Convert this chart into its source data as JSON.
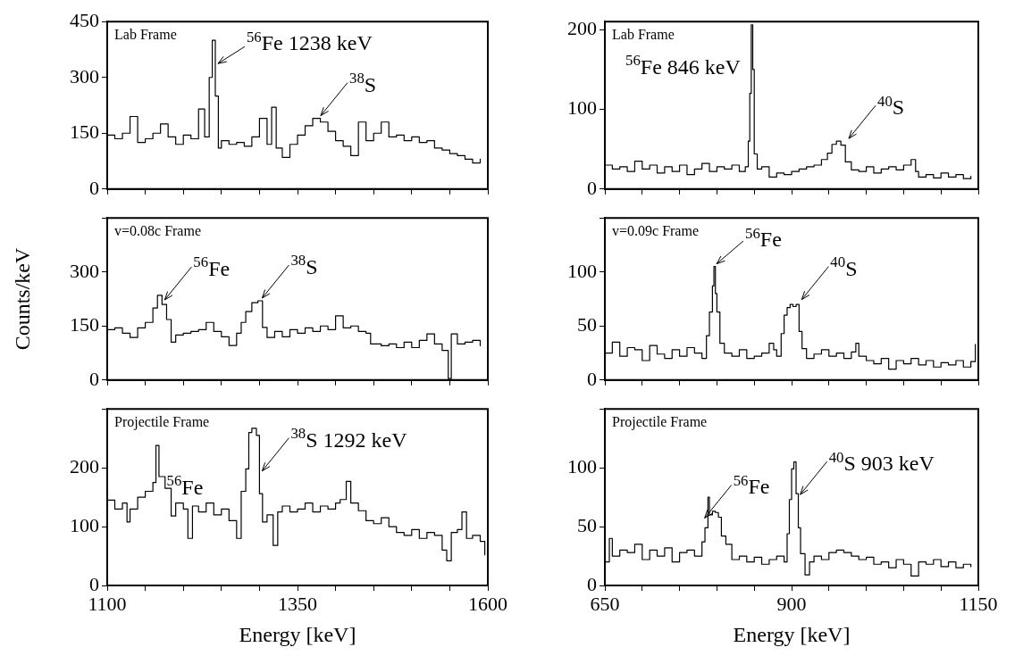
{
  "chart_data": [
    {
      "type": "step",
      "color": "#000000",
      "xlim": [
        1100,
        1600
      ],
      "xticks": [
        1100,
        {
          "value": 1150,
          "label": null
        },
        {
          "value": 1200,
          "label": null
        },
        {
          "value": 1250,
          "label": null
        },
        {
          "value": 1300,
          "label": null
        },
        1350,
        {
          "value": 1400,
          "label": null
        },
        {
          "value": 1450,
          "label": null
        },
        {
          "value": 1500,
          "label": null
        },
        {
          "value": 1550,
          "label": null
        },
        1600
      ],
      "ylim": [
        0,
        450
      ],
      "yticks": [
        0,
        150,
        300,
        450
      ],
      "tick_labels": "y",
      "x": [
        1100,
        1110,
        1120,
        1130,
        1140,
        1150,
        1160,
        1170,
        1180,
        1190,
        1200,
        1210,
        1220,
        1228,
        1234,
        1238,
        1242,
        1246,
        1250,
        1260,
        1270,
        1280,
        1290,
        1300,
        1310,
        1316,
        1322,
        1330,
        1340,
        1350,
        1360,
        1370,
        1380,
        1390,
        1400,
        1410,
        1420,
        1430,
        1440,
        1450,
        1460,
        1470,
        1480,
        1490,
        1500,
        1510,
        1520,
        1530,
        1540,
        1550,
        1560,
        1570,
        1580,
        1590
      ],
      "values": [
        145,
        135,
        150,
        195,
        125,
        135,
        150,
        175,
        140,
        120,
        145,
        135,
        215,
        140,
        300,
        400,
        250,
        110,
        130,
        120,
        125,
        115,
        140,
        190,
        120,
        220,
        110,
        85,
        120,
        145,
        170,
        190,
        180,
        155,
        130,
        115,
        90,
        180,
        130,
        150,
        180,
        140,
        145,
        130,
        140,
        125,
        130,
        110,
        105,
        95,
        90,
        80,
        70,
        80
      ],
      "annotations": [
        "Lab Frame",
        {
          "text": "$^{56}$Fe 1238 keV",
          "x": 1242,
          "y": 330
        },
        {
          "text": "$^{38}$S",
          "x": 1377,
          "y": 190
        }
      ]
    },
    {
      "type": "step",
      "color": "#000000",
      "xlim": [
        1100,
        1600
      ],
      "xticks": [
        1100,
        {
          "value": 1150,
          "label": null
        },
        {
          "value": 1200,
          "label": null
        },
        {
          "value": 1250,
          "label": null
        },
        {
          "value": 1300,
          "label": null
        },
        1350,
        {
          "value": 1400,
          "label": null
        },
        {
          "value": 1450,
          "label": null
        },
        {
          "value": 1500,
          "label": null
        },
        {
          "value": 1550,
          "label": null
        },
        1600
      ],
      "ylim": [
        0,
        450
      ],
      "yticks": [
        0,
        150,
        300,
        {
          "value": 450,
          "label": null
        }
      ],
      "tick_labels": "y",
      "ylabel": "Counts/keV",
      "x": [
        1100,
        1110,
        1120,
        1130,
        1140,
        1150,
        1160,
        1166,
        1172,
        1178,
        1184,
        1190,
        1200,
        1210,
        1220,
        1230,
        1240,
        1250,
        1260,
        1270,
        1276,
        1282,
        1290,
        1298,
        1304,
        1310,
        1320,
        1330,
        1340,
        1350,
        1360,
        1370,
        1380,
        1390,
        1400,
        1410,
        1420,
        1430,
        1440,
        1446,
        1450,
        1460,
        1470,
        1480,
        1490,
        1500,
        1510,
        1520,
        1530,
        1540,
        1548,
        1552,
        1560,
        1570,
        1580,
        1590
      ],
      "values": [
        140,
        145,
        130,
        118,
        145,
        160,
        200,
        235,
        210,
        168,
        105,
        125,
        130,
        135,
        140,
        160,
        135,
        120,
        96,
        130,
        160,
        190,
        215,
        220,
        146,
        118,
        135,
        120,
        140,
        130,
        145,
        135,
        150,
        140,
        178,
        145,
        150,
        135,
        130,
        100,
        100,
        95,
        100,
        90,
        105,
        90,
        110,
        128,
        100,
        82,
        4,
        128,
        100,
        105,
        110,
        95
      ],
      "annotations": [
        "v=0.08c Frame",
        {
          "text": "$^{56}$Fe",
          "x": 1172,
          "y": 215
        },
        {
          "text": "$^{38}$S",
          "x": 1300,
          "y": 220
        }
      ]
    },
    {
      "type": "step",
      "color": "#000000",
      "xlim": [
        1100,
        1600
      ],
      "xticks": [
        1100,
        {
          "value": 1150,
          "label": null
        },
        {
          "value": 1200,
          "label": null
        },
        {
          "value": 1250,
          "label": null
        },
        {
          "value": 1300,
          "label": null
        },
        1350,
        {
          "value": 1400,
          "label": null
        },
        {
          "value": 1450,
          "label": null
        },
        {
          "value": 1500,
          "label": null
        },
        {
          "value": 1550,
          "label": null
        },
        1600
      ],
      "ylim": [
        0,
        300
      ],
      "yticks": [
        0,
        100,
        200,
        {
          "value": 300,
          "label": null
        }
      ],
      "xlabel": "Energy [keV]",
      "x": [
        1100,
        1110,
        1120,
        1126,
        1130,
        1140,
        1150,
        1160,
        1164,
        1168,
        1176,
        1184,
        1190,
        1200,
        1206,
        1212,
        1220,
        1230,
        1240,
        1250,
        1260,
        1270,
        1276,
        1282,
        1286,
        1290,
        1296,
        1300,
        1304,
        1310,
        1318,
        1324,
        1330,
        1340,
        1350,
        1360,
        1370,
        1380,
        1390,
        1400,
        1406,
        1414,
        1420,
        1430,
        1440,
        1450,
        1460,
        1470,
        1480,
        1490,
        1500,
        1510,
        1520,
        1530,
        1540,
        1546,
        1552,
        1560,
        1566,
        1572,
        1580,
        1590,
        1596
      ],
      "values": [
        145,
        130,
        140,
        108,
        130,
        150,
        160,
        175,
        238,
        185,
        165,
        118,
        140,
        130,
        80,
        135,
        125,
        140,
        120,
        130,
        110,
        80,
        160,
        198,
        260,
        267,
        255,
        156,
        108,
        120,
        68,
        125,
        135,
        125,
        130,
        140,
        125,
        135,
        130,
        140,
        146,
        177,
        140,
        127,
        110,
        105,
        115,
        100,
        90,
        85,
        95,
        80,
        90,
        85,
        60,
        42,
        90,
        95,
        125,
        80,
        85,
        75,
        52
      ],
      "annotations": [
        "Projectile Frame",
        {
          "text": "$^{56}$Fe",
          "x": 1164,
          "y": 238
        },
        {
          "text": "$^{38}$S 1292 keV",
          "x": 1300,
          "y": 190
        }
      ]
    },
    {
      "type": "step",
      "color": "#000000",
      "xlim": [
        650,
        1150
      ],
      "xticks": [
        650,
        {
          "value": 700,
          "label": null
        },
        {
          "value": 750,
          "label": null
        },
        {
          "value": 800,
          "label": null
        },
        {
          "value": 850,
          "label": null
        },
        900,
        {
          "value": 950,
          "label": null
        },
        {
          "value": 1000,
          "label": null
        },
        {
          "value": 1050,
          "label": null
        },
        {
          "value": 1100,
          "label": null
        },
        1150
      ],
      "ylim": [
        0,
        210
      ],
      "yticks": [
        0,
        100,
        200
      ],
      "tick_labels": "y",
      "x": [
        650,
        660,
        670,
        680,
        690,
        700,
        710,
        720,
        730,
        740,
        750,
        760,
        770,
        780,
        790,
        800,
        810,
        820,
        830,
        838,
        842,
        844,
        846,
        848,
        850,
        854,
        860,
        870,
        880,
        890,
        900,
        910,
        920,
        930,
        940,
        948,
        954,
        960,
        966,
        972,
        980,
        990,
        1000,
        1010,
        1020,
        1030,
        1040,
        1050,
        1060,
        1066,
        1070,
        1080,
        1090,
        1100,
        1110,
        1120,
        1130,
        1140
      ],
      "values": [
        30,
        25,
        28,
        22,
        35,
        25,
        30,
        20,
        28,
        22,
        30,
        18,
        25,
        32,
        22,
        28,
        25,
        30,
        22,
        28,
        60,
        120,
        206,
        150,
        44,
        25,
        28,
        15,
        20,
        18,
        22,
        25,
        28,
        30,
        37,
        45,
        56,
        60,
        55,
        34,
        24,
        22,
        28,
        20,
        25,
        28,
        24,
        30,
        37,
        22,
        15,
        18,
        14,
        20,
        15,
        18,
        13,
        16
      ],
      "annotations": [
        "Lab Frame",
        {
          "text": "$^{56}$Fe 846 keV",
          "x": 846,
          "y": 206
        },
        {
          "text": "$^{40}$S",
          "x": 973,
          "y": 60
        }
      ]
    },
    {
      "type": "step",
      "color": "#000000",
      "xlim": [
        650,
        1150
      ],
      "xticks": [
        650,
        {
          "value": 700,
          "label": null
        },
        {
          "value": 750,
          "label": null
        },
        {
          "value": 800,
          "label": null
        },
        {
          "value": 850,
          "label": null
        },
        900,
        {
          "value": 950,
          "label": null
        },
        {
          "value": 1000,
          "label": null
        },
        {
          "value": 1050,
          "label": null
        },
        {
          "value": 1100,
          "label": null
        },
        1150
      ],
      "ylim": [
        0,
        150
      ],
      "yticks": [
        0,
        50,
        100,
        {
          "value": 150,
          "label": null
        }
      ],
      "tick_labels": "y",
      "x": [
        650,
        660,
        670,
        680,
        690,
        700,
        710,
        720,
        730,
        740,
        750,
        760,
        770,
        780,
        786,
        790,
        794,
        796,
        798,
        800,
        804,
        810,
        820,
        830,
        840,
        850,
        860,
        870,
        876,
        880,
        886,
        890,
        894,
        898,
        902,
        906,
        910,
        914,
        920,
        930,
        940,
        950,
        960,
        970,
        980,
        986,
        990,
        1000,
        1010,
        1020,
        1030,
        1040,
        1050,
        1060,
        1070,
        1080,
        1090,
        1100,
        1110,
        1120,
        1130,
        1140,
        1146
      ],
      "values": [
        25,
        35,
        22,
        30,
        28,
        18,
        32,
        24,
        20,
        28,
        22,
        30,
        25,
        20,
        41,
        63,
        87,
        105,
        80,
        63,
        34,
        25,
        22,
        28,
        20,
        22,
        25,
        34,
        28,
        22,
        43,
        60,
        67,
        70,
        68,
        70,
        45,
        29,
        20,
        24,
        28,
        22,
        25,
        20,
        26,
        34,
        22,
        18,
        15,
        20,
        10,
        18,
        15,
        20,
        14,
        18,
        12,
        16,
        14,
        18,
        12,
        17,
        33
      ],
      "annotations": [
        "v=0.09c Frame",
        {
          "text": "$^{56}$Fe",
          "x": 796,
          "y": 105
        },
        {
          "text": "$^{40}$S",
          "x": 910,
          "y": 72
        }
      ]
    },
    {
      "type": "step",
      "color": "#000000",
      "xlim": [
        650,
        1150
      ],
      "xticks": [
        650,
        {
          "value": 700,
          "label": null
        },
        {
          "value": 750,
          "label": null
        },
        {
          "value": 800,
          "label": null
        },
        {
          "value": 850,
          "label": null
        },
        900,
        {
          "value": 950,
          "label": null
        },
        {
          "value": 1000,
          "label": null
        },
        {
          "value": 1050,
          "label": null
        },
        {
          "value": 1100,
          "label": null
        },
        1150
      ],
      "ylim": [
        0,
        150
      ],
      "yticks": [
        0,
        50,
        100,
        {
          "value": 150,
          "label": null
        }
      ],
      "xlabel": "Energy [keV]",
      "x": [
        650,
        656,
        660,
        670,
        680,
        690,
        700,
        710,
        720,
        730,
        740,
        750,
        760,
        770,
        780,
        784,
        788,
        790,
        794,
        798,
        802,
        806,
        812,
        820,
        830,
        840,
        850,
        860,
        870,
        880,
        890,
        894,
        897,
        900,
        903,
        906,
        909,
        912,
        918,
        924,
        930,
        940,
        950,
        960,
        970,
        980,
        990,
        1000,
        1010,
        1020,
        1030,
        1040,
        1050,
        1060,
        1070,
        1080,
        1090,
        1100,
        1110,
        1120,
        1130,
        1140
      ],
      "values": [
        20,
        40,
        25,
        30,
        28,
        35,
        22,
        30,
        25,
        32,
        20,
        28,
        30,
        25,
        37,
        49,
        75,
        60,
        63,
        62,
        58,
        42,
        35,
        22,
        25,
        20,
        24,
        18,
        22,
        25,
        20,
        44,
        73,
        99,
        105,
        78,
        49,
        27,
        9,
        20,
        25,
        22,
        28,
        30,
        28,
        25,
        22,
        24,
        18,
        20,
        15,
        22,
        18,
        8,
        20,
        18,
        22,
        16,
        20,
        15,
        18,
        16
      ],
      "annotations": [
        "Projectile Frame",
        {
          "text": "$^{56}$Fe",
          "x": 780,
          "y": 55
        },
        {
          "text": "$^{40}$S 903 keV",
          "x": 908,
          "y": 75
        }
      ]
    }
  ]
}
